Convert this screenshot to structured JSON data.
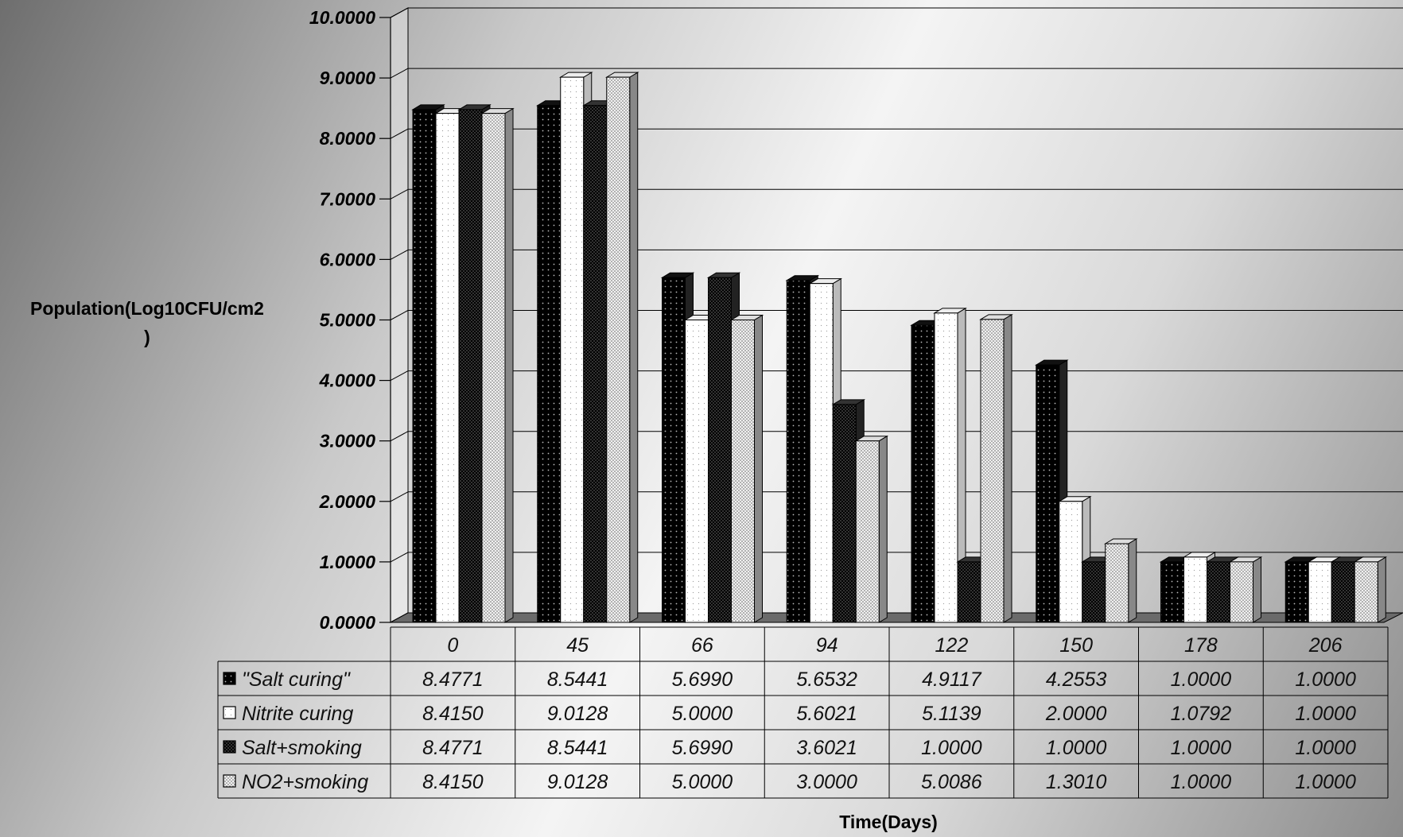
{
  "chart_data": {
    "type": "bar",
    "xlabel": "Time(Days)",
    "ylabel_lines": [
      "Population(Log10CFU/cm2",
      ")"
    ],
    "ylim": [
      0,
      10
    ],
    "y_ticks": [
      "0.0000",
      "1.0000",
      "2.0000",
      "3.0000",
      "4.0000",
      "5.0000",
      "6.0000",
      "7.0000",
      "8.0000",
      "9.0000",
      "10.0000"
    ],
    "categories": [
      "0",
      "45",
      "66",
      "94",
      "122",
      "150",
      "178",
      "206"
    ],
    "series": [
      {
        "name": "\"Salt curing\"",
        "pattern": "dark-dots",
        "values": [
          8.4771,
          8.5441,
          5.699,
          5.6532,
          4.9117,
          4.2553,
          1.0,
          1.0
        ],
        "labels": [
          "8.4771",
          "8.5441",
          "5.6990",
          "5.6532",
          "4.9117",
          "4.2553",
          "1.0000",
          "1.0000"
        ]
      },
      {
        "name": "Nitrite curing",
        "pattern": "white",
        "values": [
          8.415,
          9.0128,
          5.0,
          5.6021,
          5.1139,
          2.0,
          1.0792,
          1.0
        ],
        "labels": [
          "8.4150",
          "9.0128",
          "5.0000",
          "5.6021",
          "5.1139",
          "2.0000",
          "1.0792",
          "1.0000"
        ]
      },
      {
        "name": "Salt+smoking",
        "pattern": "dark-checker",
        "values": [
          8.4771,
          8.5441,
          5.699,
          3.6021,
          1.0,
          1.0,
          1.0,
          1.0
        ],
        "labels": [
          "8.4771",
          "8.5441",
          "5.6990",
          "3.6021",
          "1.0000",
          "1.0000",
          "1.0000",
          "1.0000"
        ]
      },
      {
        "name": "NO2+smoking",
        "pattern": "light-dots",
        "values": [
          8.415,
          9.0128,
          5.0,
          3.0,
          5.0086,
          1.301,
          1.0,
          1.0
        ],
        "labels": [
          "8.4150",
          "9.0128",
          "5.0000",
          "3.0000",
          "5.0086",
          "1.3010",
          "1.0000",
          "1.0000"
        ]
      }
    ],
    "grid": true,
    "legend": "data-table"
  }
}
